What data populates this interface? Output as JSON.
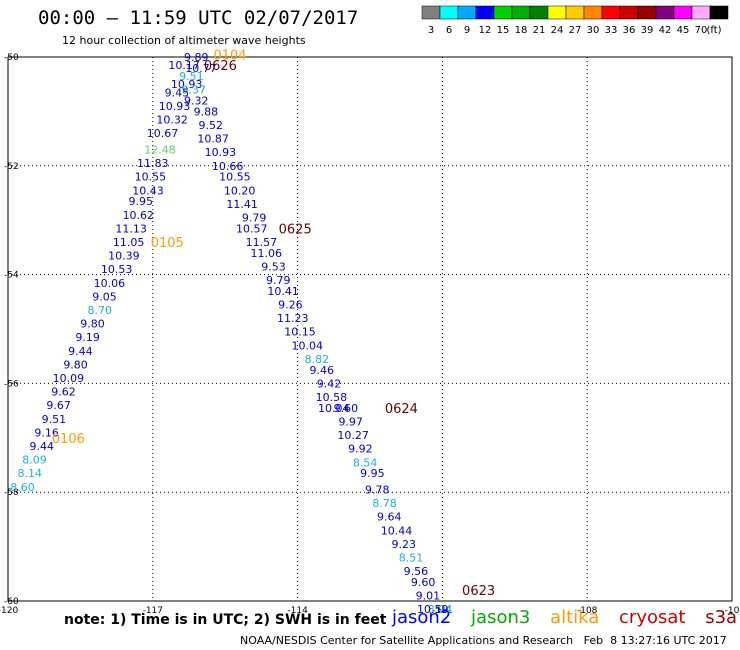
{
  "header": {
    "title": "00:00 – 11:59 UTC 02/07/2017",
    "subtitle": "12 hour collection of altimeter wave heights"
  },
  "color_scale": {
    "unit_label": "(ft)",
    "bins": [
      {
        "label": "3",
        "color": "#808080"
      },
      {
        "label": "6",
        "color": "#00ffff"
      },
      {
        "label": "9",
        "color": "#00aaff"
      },
      {
        "label": "12",
        "color": "#0000ff"
      },
      {
        "label": "15",
        "color": "#00d000"
      },
      {
        "label": "18",
        "color": "#00b000"
      },
      {
        "label": "21",
        "color": "#008000"
      },
      {
        "label": "24",
        "color": "#ffff00"
      },
      {
        "label": "27",
        "color": "#ffcc00"
      },
      {
        "label": "30",
        "color": "#ff8800"
      },
      {
        "label": "33",
        "color": "#ff0000"
      },
      {
        "label": "36",
        "color": "#cc0000"
      },
      {
        "label": "39",
        "color": "#990000"
      },
      {
        "label": "42",
        "color": "#800080"
      },
      {
        "label": "45",
        "color": "#ff00ff"
      },
      {
        "label": "70",
        "color": "#ffaaff"
      },
      {
        "label": "",
        "color": "#000000"
      }
    ]
  },
  "map": {
    "lon_labels": [
      "-120",
      "-117",
      "-114",
      "-111",
      "-108",
      "-10"
    ],
    "lat_labels": [
      "-50",
      "-52",
      "-54",
      "-56",
      "-58",
      "-60"
    ]
  },
  "colors": {
    "dark_blue": "#0000cc",
    "light_blue": "#1ab0e0",
    "green": "#66cc66",
    "orange": "#ff9900",
    "dark_red": "#660000"
  },
  "chart_data": {
    "type": "scatter",
    "units": "feet",
    "time_labels": [
      {
        "text": "0104",
        "lon": -115.4,
        "lat": -49.95,
        "color": "orange"
      },
      {
        "text": "0626",
        "lon": -115.6,
        "lat": -50.15,
        "color": "dark_red"
      },
      {
        "text": "0105",
        "lon": -116.7,
        "lat": -53.4,
        "color": "orange"
      },
      {
        "text": "0625",
        "lon": -114.05,
        "lat": -53.15,
        "color": "dark_red"
      },
      {
        "text": "0624",
        "lon": -111.85,
        "lat": -56.45,
        "color": "dark_red"
      },
      {
        "text": "0106",
        "lon": -118.75,
        "lat": -57.0,
        "color": "orange"
      },
      {
        "text": "0623",
        "lon": -110.25,
        "lat": -59.8,
        "color": "dark_red"
      }
    ],
    "points": [
      {
        "v": "9.89",
        "lon": -116.1,
        "lat": -50.0,
        "c": "dark_blue"
      },
      {
        "v": "10.77",
        "lon": -116.0,
        "lat": -50.2,
        "c": "dark_blue"
      },
      {
        "v": "10.17",
        "lon": -116.35,
        "lat": -50.15,
        "c": "dark_blue"
      },
      {
        "v": "9.51",
        "lon": -116.2,
        "lat": -50.35,
        "c": "light_blue"
      },
      {
        "v": "10.93",
        "lon": -116.3,
        "lat": -50.5,
        "c": "dark_blue"
      },
      {
        "v": "9.37",
        "lon": -116.15,
        "lat": -50.6,
        "c": "light_blue"
      },
      {
        "v": "9.45",
        "lon": -116.5,
        "lat": -50.65,
        "c": "dark_blue"
      },
      {
        "v": "9.32",
        "lon": -116.1,
        "lat": -50.8,
        "c": "dark_blue"
      },
      {
        "v": "10.93",
        "lon": -116.55,
        "lat": -50.9,
        "c": "dark_blue"
      },
      {
        "v": "9.88",
        "lon": -115.9,
        "lat": -51.0,
        "c": "dark_blue"
      },
      {
        "v": "10.32",
        "lon": -116.6,
        "lat": -51.15,
        "c": "dark_blue"
      },
      {
        "v": "9.52",
        "lon": -115.8,
        "lat": -51.25,
        "c": "dark_blue"
      },
      {
        "v": "10.67",
        "lon": -116.8,
        "lat": -51.4,
        "c": "dark_blue"
      },
      {
        "v": "10.87",
        "lon": -115.75,
        "lat": -51.5,
        "c": "dark_blue"
      },
      {
        "v": "12.48",
        "lon": -116.85,
        "lat": -51.7,
        "c": "green"
      },
      {
        "v": "10.93",
        "lon": -115.6,
        "lat": -51.75,
        "c": "dark_blue"
      },
      {
        "v": "11.83",
        "lon": -117.0,
        "lat": -51.95,
        "c": "dark_blue"
      },
      {
        "v": "10.66",
        "lon": -115.45,
        "lat": -52.0,
        "c": "dark_blue"
      },
      {
        "v": "10.55",
        "lon": -117.05,
        "lat": -52.2,
        "c": "dark_blue"
      },
      {
        "v": "10.55",
        "lon": -115.3,
        "lat": -52.2,
        "c": "dark_blue"
      },
      {
        "v": "10.43",
        "lon": -117.1,
        "lat": -52.45,
        "c": "dark_blue"
      },
      {
        "v": "10.20",
        "lon": -115.2,
        "lat": -52.45,
        "c": "dark_blue"
      },
      {
        "v": "9.95",
        "lon": -117.25,
        "lat": -52.65,
        "c": "dark_blue"
      },
      {
        "v": "11.41",
        "lon": -115.15,
        "lat": -52.7,
        "c": "dark_blue"
      },
      {
        "v": "10.62",
        "lon": -117.3,
        "lat": -52.9,
        "c": "dark_blue"
      },
      {
        "v": "9.79",
        "lon": -114.9,
        "lat": -52.95,
        "c": "dark_blue"
      },
      {
        "v": "11.13",
        "lon": -117.45,
        "lat": -53.15,
        "c": "dark_blue"
      },
      {
        "v": "10.57",
        "lon": -114.95,
        "lat": -53.15,
        "c": "dark_blue"
      },
      {
        "v": "11.05",
        "lon": -117.5,
        "lat": -53.4,
        "c": "dark_blue"
      },
      {
        "v": "11.57",
        "lon": -114.75,
        "lat": -53.4,
        "c": "dark_blue"
      },
      {
        "v": "10.39",
        "lon": -117.6,
        "lat": -53.65,
        "c": "dark_blue"
      },
      {
        "v": "11.06",
        "lon": -114.65,
        "lat": -53.6,
        "c": "dark_blue"
      },
      {
        "v": "10.53",
        "lon": -117.75,
        "lat": -53.9,
        "c": "dark_blue"
      },
      {
        "v": "9.53",
        "lon": -114.5,
        "lat": -53.85,
        "c": "dark_blue"
      },
      {
        "v": "10.06",
        "lon": -117.9,
        "lat": -54.15,
        "c": "dark_blue"
      },
      {
        "v": "9.79",
        "lon": -114.4,
        "lat": -54.1,
        "c": "dark_blue"
      },
      {
        "v": "9.05",
        "lon": -118.0,
        "lat": -54.4,
        "c": "dark_blue"
      },
      {
        "v": "10.41",
        "lon": -114.3,
        "lat": -54.3,
        "c": "dark_blue"
      },
      {
        "v": "8.70",
        "lon": -118.1,
        "lat": -54.65,
        "c": "light_blue"
      },
      {
        "v": "9.26",
        "lon": -114.15,
        "lat": -54.55,
        "c": "dark_blue"
      },
      {
        "v": "9.80",
        "lon": -118.25,
        "lat": -54.9,
        "c": "dark_blue"
      },
      {
        "v": "11.23",
        "lon": -114.1,
        "lat": -54.8,
        "c": "dark_blue"
      },
      {
        "v": "9.19",
        "lon": -118.35,
        "lat": -55.15,
        "c": "dark_blue"
      },
      {
        "v": "10.15",
        "lon": -113.95,
        "lat": -55.05,
        "c": "dark_blue"
      },
      {
        "v": "9.44",
        "lon": -118.5,
        "lat": -55.4,
        "c": "dark_blue"
      },
      {
        "v": "10.04",
        "lon": -113.8,
        "lat": -55.3,
        "c": "dark_blue"
      },
      {
        "v": "9.80",
        "lon": -118.6,
        "lat": -55.65,
        "c": "dark_blue"
      },
      {
        "v": "8.82",
        "lon": -113.6,
        "lat": -55.55,
        "c": "light_blue"
      },
      {
        "v": "10.09",
        "lon": -118.75,
        "lat": -55.9,
        "c": "dark_blue"
      },
      {
        "v": "9.46",
        "lon": -113.5,
        "lat": -55.75,
        "c": "dark_blue"
      },
      {
        "v": "9.62",
        "lon": -118.85,
        "lat": -56.15,
        "c": "dark_blue"
      },
      {
        "v": "9.42",
        "lon": -113.35,
        "lat": -56.0,
        "c": "dark_blue"
      },
      {
        "v": "9.67",
        "lon": -118.95,
        "lat": -56.4,
        "c": "dark_blue"
      },
      {
        "v": "10.58",
        "lon": -113.3,
        "lat": -56.25,
        "c": "dark_blue"
      },
      {
        "v": "9.51",
        "lon": -119.05,
        "lat": -56.65,
        "c": "dark_blue"
      },
      {
        "v": "9.60",
        "lon": -113.0,
        "lat": -56.45,
        "c": "dark_blue"
      },
      {
        "v": "10.04",
        "lon": -113.25,
        "lat": -56.45,
        "c": "dark_blue"
      },
      {
        "v": "9.16",
        "lon": -119.2,
        "lat": -56.9,
        "c": "dark_blue"
      },
      {
        "v": "9.97",
        "lon": -112.9,
        "lat": -56.7,
        "c": "dark_blue"
      },
      {
        "v": "9.44",
        "lon": -119.3,
        "lat": -57.15,
        "c": "dark_blue"
      },
      {
        "v": "10.27",
        "lon": -112.85,
        "lat": -56.95,
        "c": "dark_blue"
      },
      {
        "v": "8.09",
        "lon": -119.45,
        "lat": -57.4,
        "c": "light_blue"
      },
      {
        "v": "9.92",
        "lon": -112.7,
        "lat": -57.2,
        "c": "dark_blue"
      },
      {
        "v": "8.14",
        "lon": -119.55,
        "lat": -57.65,
        "c": "light_blue"
      },
      {
        "v": "8.54",
        "lon": -112.6,
        "lat": -57.45,
        "c": "light_blue"
      },
      {
        "v": "8.60",
        "lon": -119.7,
        "lat": -57.9,
        "c": "light_blue"
      },
      {
        "v": "9.95",
        "lon": -112.45,
        "lat": -57.65,
        "c": "dark_blue"
      },
      {
        "v": "9.78",
        "lon": -112.35,
        "lat": -57.95,
        "c": "dark_blue"
      },
      {
        "v": "8.78",
        "lon": -112.2,
        "lat": -58.2,
        "c": "light_blue"
      },
      {
        "v": "9.64",
        "lon": -112.1,
        "lat": -58.45,
        "c": "dark_blue"
      },
      {
        "v": "10.44",
        "lon": -111.95,
        "lat": -58.7,
        "c": "dark_blue"
      },
      {
        "v": "9.23",
        "lon": -111.8,
        "lat": -58.95,
        "c": "dark_blue"
      },
      {
        "v": "8.51",
        "lon": -111.65,
        "lat": -59.2,
        "c": "light_blue"
      },
      {
        "v": "9.56",
        "lon": -111.55,
        "lat": -59.45,
        "c": "dark_blue"
      },
      {
        "v": "9.60",
        "lon": -111.4,
        "lat": -59.65,
        "c": "dark_blue"
      },
      {
        "v": "9.01",
        "lon": -111.3,
        "lat": -59.9,
        "c": "dark_blue"
      },
      {
        "v": "8.94",
        "lon": -111.05,
        "lat": -60.15,
        "c": "light_blue"
      },
      {
        "v": "10.59",
        "lon": -111.2,
        "lat": -60.15,
        "c": "dark_blue"
      }
    ]
  },
  "note": "note:  1) Time is in UTC;  2) SWH is in feet",
  "legend": [
    {
      "label": "jason2",
      "color": "#0000ff"
    },
    {
      "label": "jason3",
      "color": "#00aa00"
    },
    {
      "label": "altika",
      "color": "#ff9900"
    },
    {
      "label": "cryosat",
      "color": "#cc0000"
    },
    {
      "label": "s3a",
      "color": "#990000"
    }
  ],
  "footer": "NOAA/NESDIS Center for Satellite Applications and Research   Feb  8 13:27:16 UTC 2017"
}
